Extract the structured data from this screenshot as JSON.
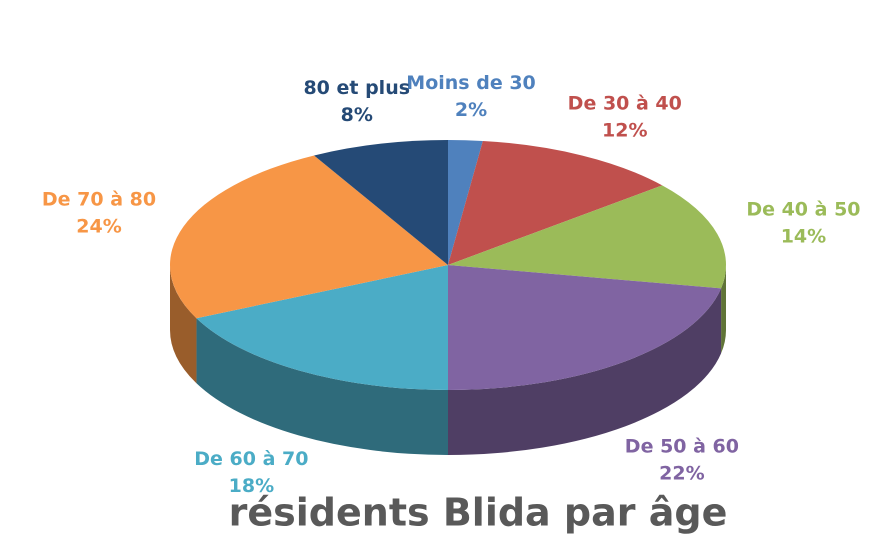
{
  "chart_data": {
    "type": "pie",
    "title": "résidents Blida par âge",
    "categories": [
      "Moins de 30",
      "De 30 à 40",
      "De 40 à 50",
      "De 50 à 60",
      "De 60 à 70",
      "De 70 à 80",
      "80 et plus"
    ],
    "values": [
      2,
      12,
      14,
      22,
      18,
      24,
      8
    ],
    "value_labels": [
      "2%",
      "12%",
      "14%",
      "22%",
      "18%",
      "24%",
      "8%"
    ],
    "colors": [
      "#4f81bd",
      "#c0504d",
      "#9bbb59",
      "#8064a2",
      "#4bacc6",
      "#f79646",
      "#254a76"
    ]
  }
}
